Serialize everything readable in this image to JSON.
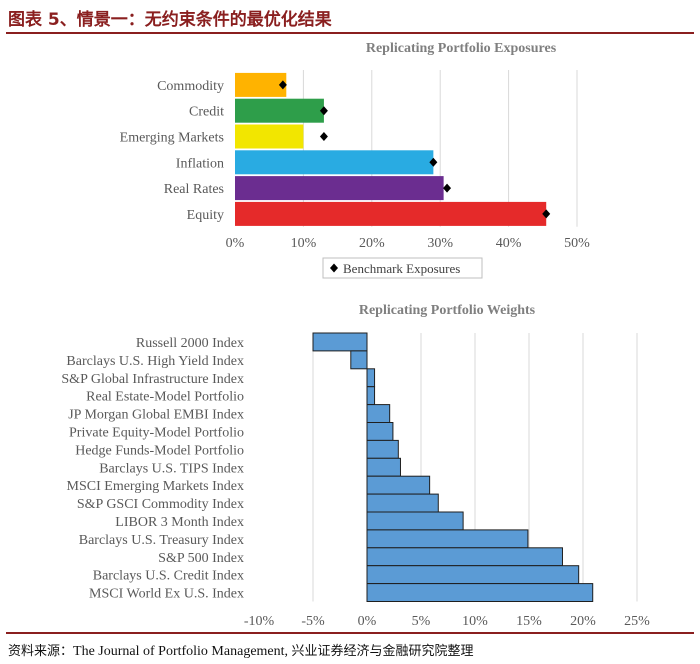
{
  "header": {
    "title": "图表 5、情景一：无约束条件的最优化结果"
  },
  "footer": {
    "source_label": "资料来源：",
    "source_en": "The Journal of Portfolio Management",
    "source_sep": ", ",
    "source_cn": "兴业证券经济与金融研究院整理"
  },
  "chart_data": [
    {
      "type": "bar",
      "orientation": "horizontal",
      "title": "Replicating Portfolio Exposures",
      "categories": [
        "Commodity",
        "Credit",
        "Emerging Markets",
        "Inflation",
        "Real Rates",
        "Equity"
      ],
      "values": [
        7.5,
        13,
        10,
        29,
        30.5,
        45.5
      ],
      "colors": [
        "#FFB300",
        "#2E9E4A",
        "#F2E600",
        "#29ABE2",
        "#6B2D90",
        "#E52A2A"
      ],
      "series": [
        {
          "name": "Benchmark Exposures",
          "values": [
            7,
            13,
            13,
            29,
            31,
            45.5
          ],
          "marker": "diamond",
          "color": "#000000"
        }
      ],
      "xlim": [
        0,
        50
      ],
      "xticks": [
        0,
        10,
        20,
        30,
        40,
        50
      ],
      "tick_format": "percent",
      "legend_placement": "bottom",
      "grid": true
    },
    {
      "type": "bar",
      "orientation": "horizontal",
      "title": "Replicating Portfolio Weights",
      "categories": [
        "Russell 2000 Index",
        "Barclays U.S. High Yield Index",
        "S&P Global Infrastructure Index",
        "Real Estate-Model Portfolio",
        "JP Morgan Global EMBI Index",
        "Private Equity-Model Portfolio",
        "Hedge Funds-Model Portfolio",
        "Barclays U.S. TIPS Index",
        "MSCI Emerging Markets Index",
        "S&P GSCI Commodity  Index",
        "LIBOR 3 Month Index",
        "Barclays U.S. Treasury Index",
        "S&P 500 Index",
        "Barclays U.S. Credit Index",
        "MSCI World Ex U.S. Index"
      ],
      "values": [
        -5,
        -1.5,
        0.7,
        0.7,
        2.1,
        2.4,
        2.9,
        3.1,
        5.8,
        6.6,
        8.9,
        14.9,
        18.1,
        19.6,
        20.9
      ],
      "bar_color": "#5B9BD5",
      "xlim": [
        -10,
        25
      ],
      "xticks": [
        -10,
        -5,
        0,
        5,
        10,
        15,
        20,
        25
      ],
      "tick_format": "percent",
      "grid": true
    }
  ]
}
